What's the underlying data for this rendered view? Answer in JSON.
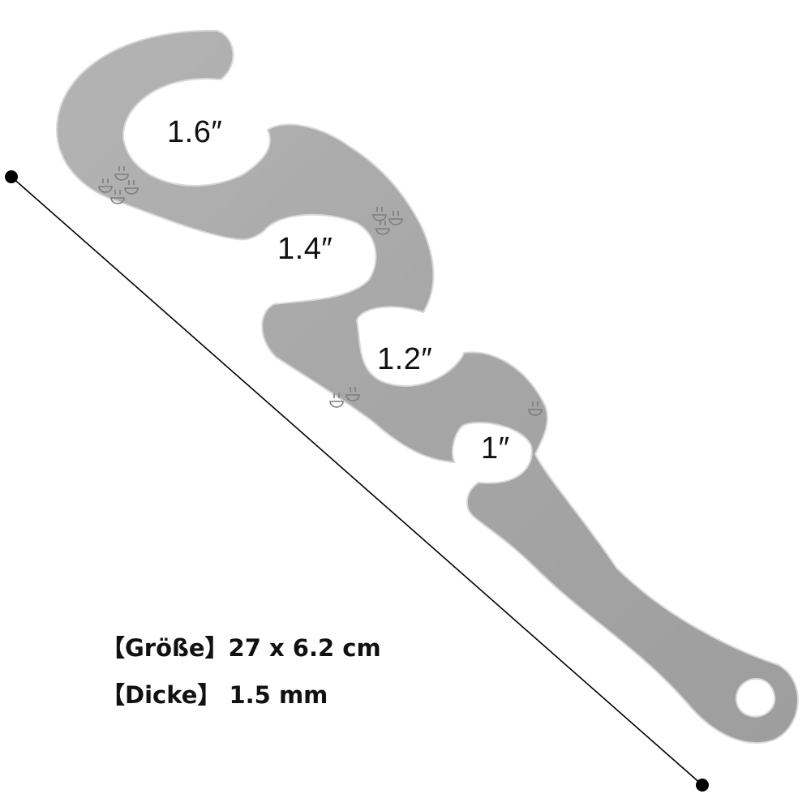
{
  "product": {
    "name": "spaghetti measuring tool",
    "material_color": "#a9a9a9",
    "portions": [
      {
        "label": "1.6″"
      },
      {
        "label": "1.4″"
      },
      {
        "label": "1.2″"
      },
      {
        "label": "1″"
      }
    ],
    "portion_icon": "bowl-icon"
  },
  "dimension_line": {
    "color": "#000000"
  },
  "specs": {
    "size_label": "【Größe】27 x 6.2 cm",
    "thickness_label": "【Dicke】 1.5 mm"
  }
}
